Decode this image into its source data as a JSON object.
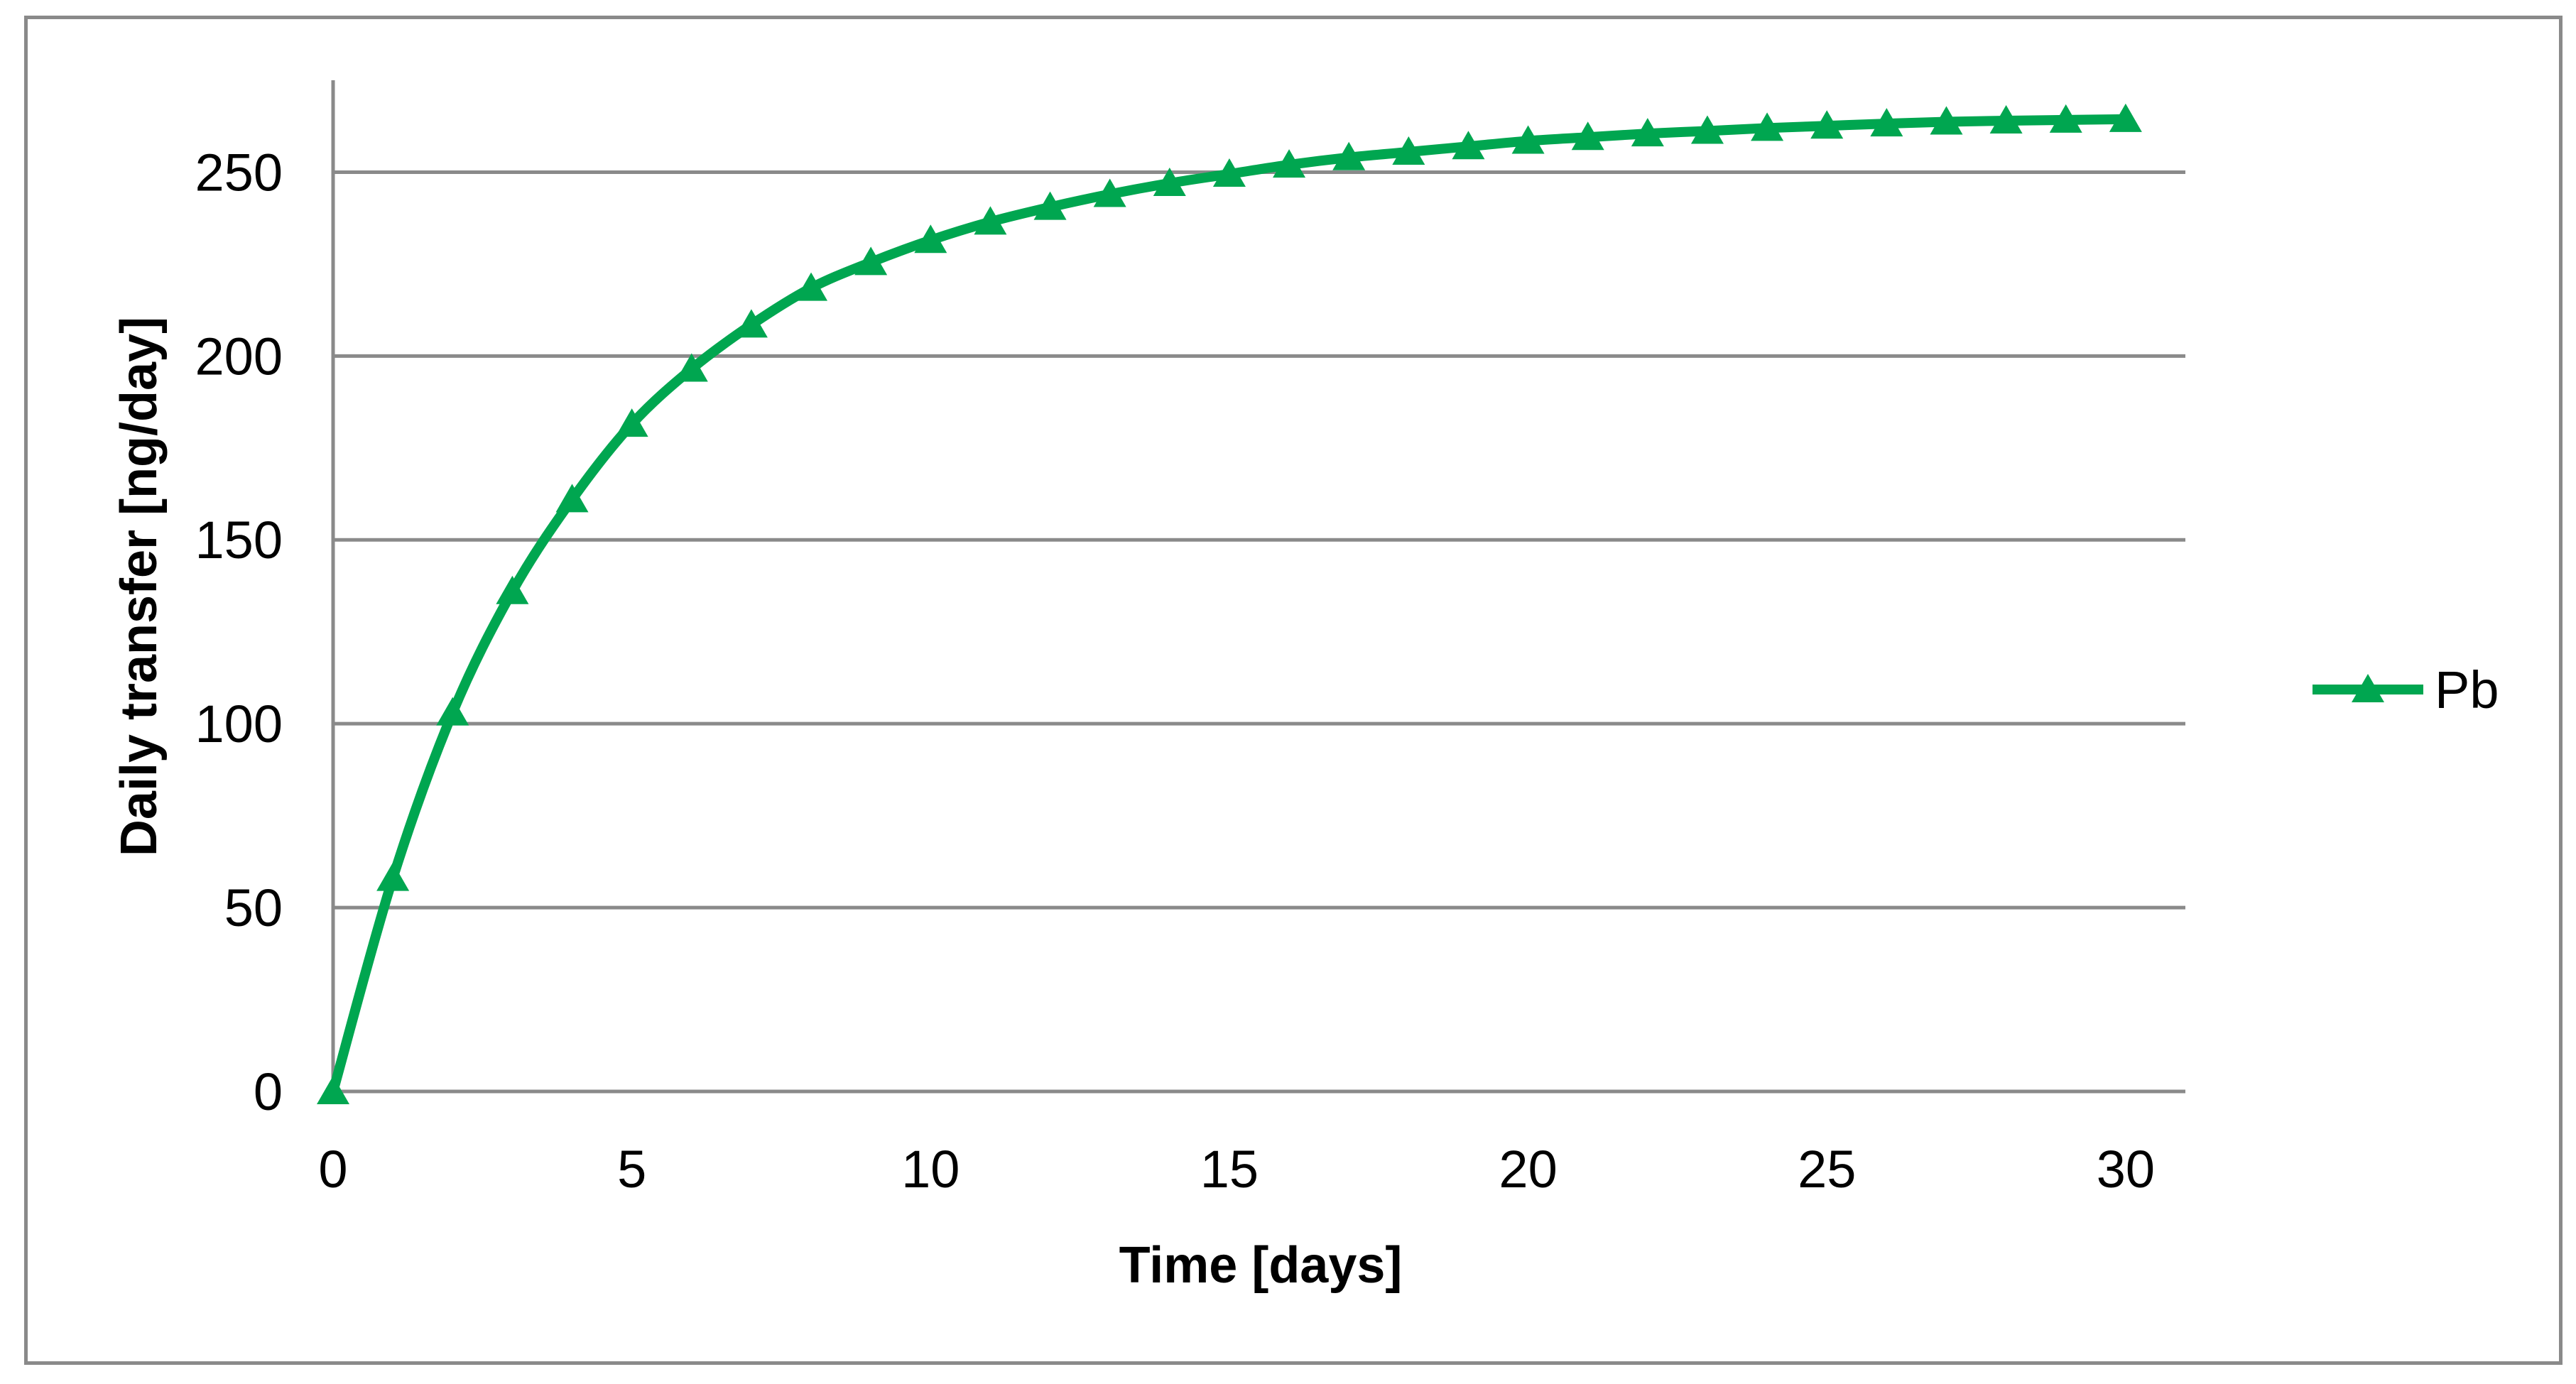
{
  "chart_data": {
    "type": "line",
    "title": "",
    "xlabel": "Time [days]",
    "ylabel": "Daily transfer [ng/day]",
    "xlim": [
      0,
      31
    ],
    "ylim": [
      0,
      275
    ],
    "x_ticks": [
      0,
      5,
      10,
      15,
      20,
      25,
      30
    ],
    "y_ticks": [
      0,
      50,
      100,
      150,
      200,
      250
    ],
    "grid": "horizontal-major-only",
    "legend_position": "right-middle",
    "x": [
      0,
      1,
      2,
      3,
      4,
      5,
      6,
      7,
      8,
      9,
      10,
      11,
      12,
      13,
      14,
      15,
      16,
      17,
      18,
      19,
      20,
      21,
      22,
      23,
      24,
      25,
      26,
      27,
      28,
      29,
      30
    ],
    "series": [
      {
        "name": "Pb",
        "color": "#00A650",
        "marker": "triangle",
        "smooth": true,
        "values": [
          0,
          58,
          103,
          136,
          161,
          181.5,
          196.5,
          208.5,
          218.5,
          225.5,
          231.5,
          236.5,
          240.5,
          244,
          247,
          249.5,
          252,
          254,
          255.5,
          257,
          258.5,
          259.5,
          260.5,
          261.2,
          262,
          262.6,
          263.2,
          263.7,
          264,
          264.2,
          264.4
        ]
      }
    ]
  },
  "colors": {
    "background": "#FFFFFF",
    "plot_background": "#FFFFFF",
    "gridline": "#8A8A8A",
    "axis": "#8A8A8A",
    "outer_border": "#8A8A8A",
    "text": "#000000",
    "series_green": "#00A650"
  }
}
